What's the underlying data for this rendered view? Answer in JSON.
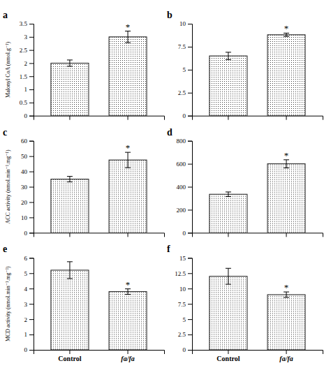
{
  "chart_data": [
    {
      "type": "bar",
      "title": "a",
      "ylabel": "Malonyl CoA (nmol.g⁻¹)",
      "categories": [
        null,
        null
      ],
      "values": [
        2.0,
        3.0
      ],
      "errors": [
        0.12,
        0.22
      ],
      "ylim": [
        0,
        3.5
      ],
      "yticks": [
        0,
        0.5,
        1,
        1.5,
        2,
        2.5,
        3,
        3.5
      ],
      "color": "#1a1a1a",
      "annotations": [
        {
          "index": 1,
          "text": "*"
        }
      ]
    },
    {
      "type": "bar",
      "title": "b",
      "categories": [
        null,
        null
      ],
      "values": [
        6.5,
        8.8
      ],
      "errors": [
        0.4,
        0.18
      ],
      "ylim": [
        0,
        10
      ],
      "yticks": [
        0,
        2.5,
        5,
        7.5,
        10
      ],
      "color": "#1a1a1a",
      "annotations": [
        {
          "index": 1,
          "text": "*"
        }
      ]
    },
    {
      "type": "bar",
      "title": "c",
      "ylabel": "ACC activity (nmol.min⁻¹.mg⁻¹)",
      "categories": [
        null,
        null
      ],
      "values": [
        35.0,
        47.5
      ],
      "errors": [
        1.8,
        5.0
      ],
      "ylim": [
        0,
        60
      ],
      "yticks": [
        0,
        10,
        20,
        30,
        40,
        50,
        60
      ],
      "color": "#1a1a1a",
      "annotations": [
        {
          "index": 1,
          "text": "*"
        }
      ]
    },
    {
      "type": "bar",
      "title": "d",
      "categories": [
        null,
        null
      ],
      "values": [
        335,
        600
      ],
      "errors": [
        20,
        35
      ],
      "ylim": [
        0,
        800
      ],
      "yticks": [
        0,
        200,
        400,
        600,
        800
      ],
      "color": "#1a1a1a",
      "annotations": [
        {
          "index": 1,
          "text": "*"
        }
      ]
    },
    {
      "type": "bar",
      "title": "e",
      "ylabel": "MCD activity (nmol.min⁻¹.mg⁻¹)",
      "categories": [
        "Control",
        "fa/fa"
      ],
      "values": [
        5.2,
        3.8
      ],
      "errors": [
        0.55,
        0.18
      ],
      "ylim": [
        0,
        6
      ],
      "yticks": [
        0,
        1,
        2,
        3,
        4,
        5,
        6
      ],
      "color": "#1a1a1a",
      "annotations": [
        {
          "index": 1,
          "text": "*"
        }
      ]
    },
    {
      "type": "bar",
      "title": "f",
      "categories": [
        "Control",
        "fa/fa"
      ],
      "values": [
        12.0,
        9.0
      ],
      "errors": [
        1.3,
        0.45
      ],
      "ylim": [
        0,
        15
      ],
      "yticks": [
        0,
        2.5,
        5,
        7.5,
        10,
        12.5,
        15
      ],
      "color": "#1a1a1a",
      "annotations": [
        {
          "index": 1,
          "text": "*"
        }
      ]
    }
  ]
}
